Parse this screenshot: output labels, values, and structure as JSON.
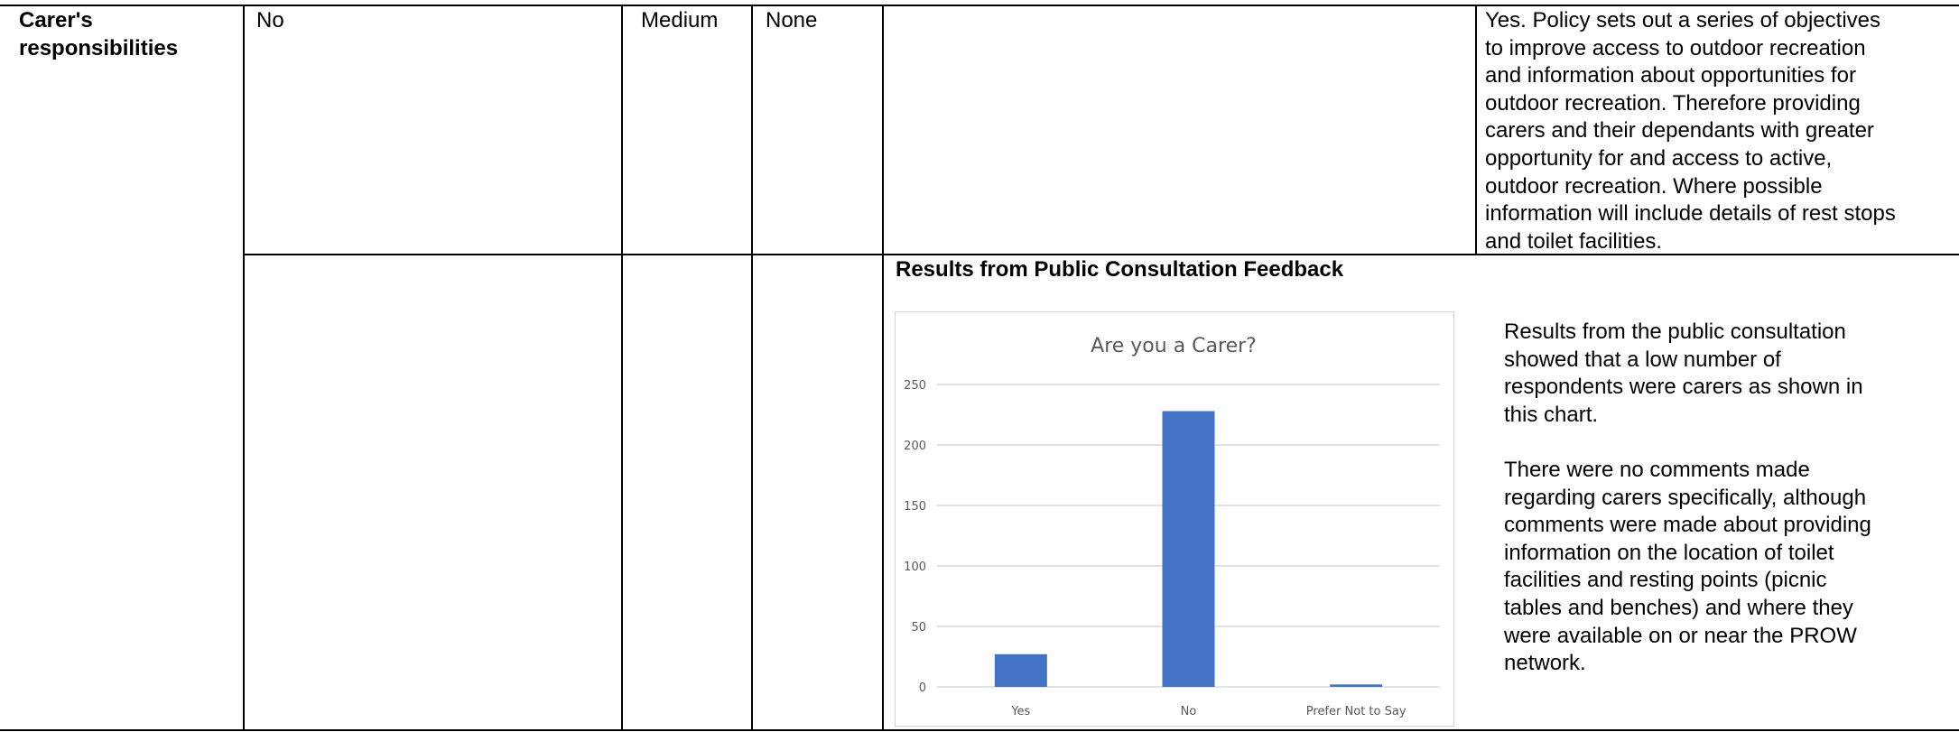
{
  "table": {
    "row_header": [
      "Carer's",
      "responsibilities"
    ],
    "row1": {
      "col2": "No",
      "col3": "Medium",
      "col4": "None",
      "col5": "",
      "col6_lines": [
        "Yes. Policy sets out a series of objectives",
        "to improve access to outdoor recreation",
        "and information about opportunities for",
        "outdoor recreation. Therefore providing",
        "carers and their dependants with greater",
        "opportunity for and access to active,",
        "outdoor recreation. Where possible",
        "information will include details of rest stops",
        "and toilet facilities."
      ]
    },
    "row2": {
      "section_title": "Results from Public Consultation Feedback",
      "para1_lines": [
        "Results from the public consultation",
        "showed that a low number of",
        "respondents were carers as shown in",
        "this chart."
      ],
      "para2_lines": [
        "There were no comments made",
        "regarding carers specifically, although",
        "comments were made about providing",
        "information on the location of toilet",
        "facilities and resting points (picnic",
        "tables and benches) and where they",
        "were available on or near the PROW",
        "network."
      ]
    }
  },
  "chart_data": {
    "type": "bar",
    "title": "Are you a Carer?",
    "categories": [
      "Yes",
      "No",
      "Prefer Not to Say"
    ],
    "values": [
      27,
      228,
      2
    ],
    "ylim": [
      0,
      250
    ],
    "yticks": [
      "0",
      "50",
      "100",
      "150",
      "200",
      "250"
    ],
    "xlabel": "",
    "ylabel": "",
    "grid": true,
    "legend": "none",
    "bar_color": "#4472c4",
    "grid_color": "#d9d9d9",
    "text_color": "#595959"
  }
}
